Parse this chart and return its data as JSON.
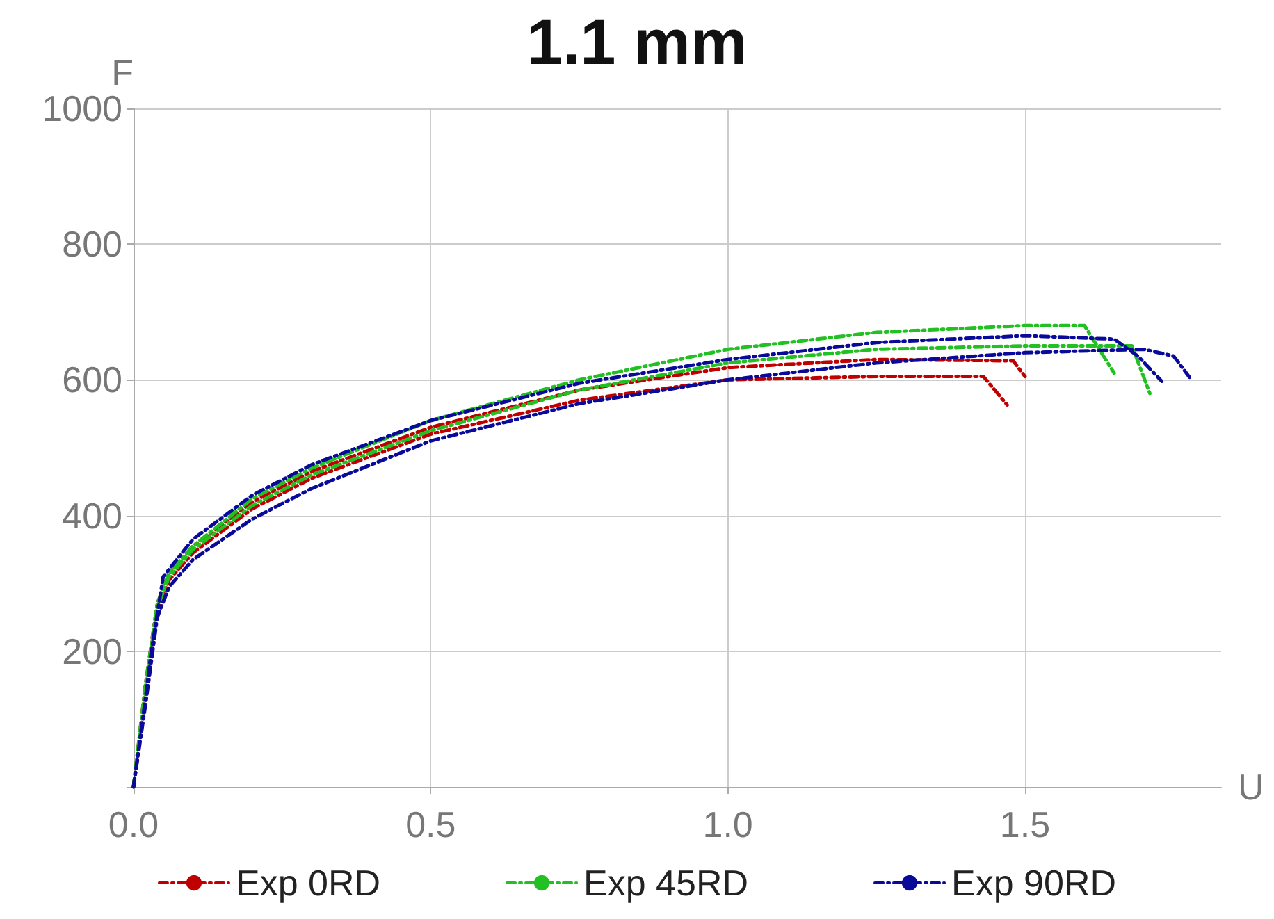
{
  "chart_data": {
    "type": "line",
    "title": "1.1 mm",
    "xlabel": "U",
    "ylabel": "F",
    "xlim": [
      0,
      1.83
    ],
    "xticks": [
      {
        "value": 0,
        "label": "0.0"
      },
      {
        "value": 0.5,
        "label": "0.5"
      },
      {
        "value": 1,
        "label": "1.0"
      },
      {
        "value": 1.5,
        "label": "1.5"
      }
    ],
    "ylim": [
      0,
      1000
    ],
    "yticks": [
      {
        "value": 0,
        "label": null
      },
      200,
      400,
      600,
      800,
      1000
    ],
    "grid": true,
    "legend": "bottom",
    "marker": "none",
    "line_style": "dashed",
    "series": [
      {
        "name": "Exp 0RD",
        "color": "#c00000",
        "x": [
          0,
          0.02,
          0.04,
          0.06,
          0.1,
          0.2,
          0.3,
          0.5,
          0.75,
          1.0,
          1.25,
          1.48,
          1.5
        ],
        "values": [
          0,
          150,
          270,
          315,
          355,
          420,
          465,
          530,
          585,
          618,
          630,
          628,
          605
        ]
      },
      {
        "color": "#c00000",
        "x": [
          0,
          0.02,
          0.04,
          0.06,
          0.1,
          0.2,
          0.3,
          0.5,
          0.75,
          1.0,
          1.25,
          1.43,
          1.47
        ],
        "values": [
          0,
          140,
          260,
          305,
          345,
          410,
          455,
          520,
          570,
          600,
          605,
          605,
          563
        ]
      },
      {
        "name": "Exp 45RD",
        "color": "#22c022",
        "x": [
          0,
          0.02,
          0.04,
          0.06,
          0.1,
          0.2,
          0.3,
          0.5,
          0.75,
          1.0,
          1.25,
          1.5,
          1.6,
          1.65
        ],
        "values": [
          0,
          150,
          270,
          315,
          355,
          425,
          470,
          540,
          600,
          645,
          670,
          680,
          680,
          610
        ]
      },
      {
        "color": "#22c022",
        "x": [
          0,
          0.02,
          0.04,
          0.06,
          0.1,
          0.2,
          0.3,
          0.5,
          0.75,
          1.0,
          1.25,
          1.5,
          1.68,
          1.71
        ],
        "values": [
          0,
          145,
          265,
          310,
          350,
          415,
          460,
          525,
          585,
          625,
          645,
          650,
          650,
          580
        ]
      },
      {
        "name": "Exp 90RD",
        "color": "#0a0a9a",
        "x": [
          0,
          0.02,
          0.03,
          0.05,
          0.1,
          0.2,
          0.3,
          0.5,
          0.75,
          1.0,
          1.25,
          1.5,
          1.65,
          1.69,
          1.73
        ],
        "values": [
          0,
          130,
          200,
          310,
          365,
          430,
          475,
          540,
          595,
          630,
          655,
          665,
          660,
          635,
          598
        ]
      },
      {
        "color": "#0a0a9a",
        "x": [
          0,
          0.02,
          0.04,
          0.06,
          0.1,
          0.2,
          0.3,
          0.5,
          0.75,
          1.0,
          1.25,
          1.5,
          1.7,
          1.75,
          1.78
        ],
        "values": [
          0,
          120,
          250,
          295,
          335,
          395,
          440,
          510,
          565,
          600,
          625,
          640,
          645,
          635,
          600
        ]
      }
    ]
  }
}
